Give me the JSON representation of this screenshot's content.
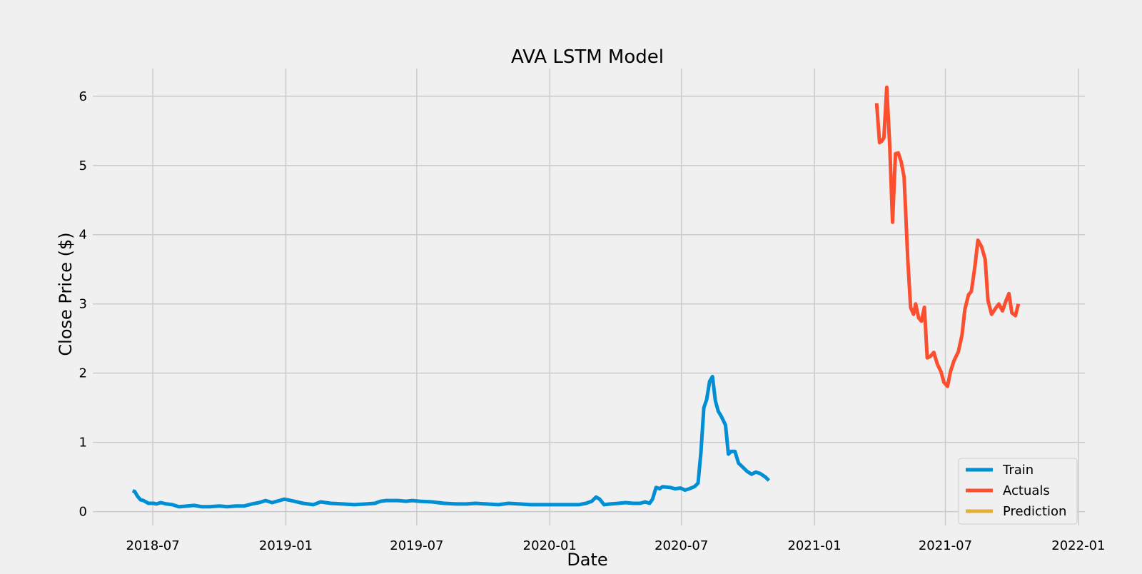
{
  "chart_data": {
    "type": "line",
    "title": "AVA LSTM Model",
    "xlabel": "Date",
    "ylabel": "Close Price ($)",
    "xlim": [
      "2018-04-09",
      "2022-01-10"
    ],
    "ylim": [
      -0.2,
      6.4
    ],
    "x_ticks": [
      "2018-07",
      "2019-01",
      "2019-07",
      "2020-01",
      "2020-07",
      "2021-01",
      "2021-07",
      "2022-01"
    ],
    "x_tick_dates": [
      "2018-07-01",
      "2019-01-01",
      "2019-07-01",
      "2020-01-01",
      "2020-07-01",
      "2021-01-01",
      "2021-07-01",
      "2022-01-01"
    ],
    "y_ticks": [
      0,
      1,
      2,
      3,
      4,
      5,
      6
    ],
    "grid": true,
    "legend_position": "bottom-right",
    "colors": {
      "background": "#f0f0f0",
      "grid": "#cbcbcb",
      "train": "#008fd5",
      "actuals": "#fc4f30",
      "prediction": "#e5ae38"
    },
    "series": [
      {
        "name": "Train",
        "color": "#008fd5",
        "points": [
          [
            "2018-06-03",
            0.3
          ],
          [
            "2018-06-06",
            0.29
          ],
          [
            "2018-06-10",
            0.22
          ],
          [
            "2018-06-14",
            0.17
          ],
          [
            "2018-06-18",
            0.16
          ],
          [
            "2018-06-25",
            0.12
          ],
          [
            "2018-07-02",
            0.12
          ],
          [
            "2018-07-06",
            0.11
          ],
          [
            "2018-07-12",
            0.13
          ],
          [
            "2018-07-20",
            0.11
          ],
          [
            "2018-07-28",
            0.1
          ],
          [
            "2018-08-06",
            0.07
          ],
          [
            "2018-08-18",
            0.08
          ],
          [
            "2018-08-27",
            0.09
          ],
          [
            "2018-09-07",
            0.07
          ],
          [
            "2018-09-18",
            0.07
          ],
          [
            "2018-10-01",
            0.08
          ],
          [
            "2018-10-12",
            0.07
          ],
          [
            "2018-10-24",
            0.08
          ],
          [
            "2018-11-04",
            0.08
          ],
          [
            "2018-11-15",
            0.11
          ],
          [
            "2018-11-25",
            0.13
          ],
          [
            "2018-12-04",
            0.16
          ],
          [
            "2018-12-13",
            0.13
          ],
          [
            "2018-12-30",
            0.18
          ],
          [
            "2019-01-08",
            0.16
          ],
          [
            "2019-01-25",
            0.12
          ],
          [
            "2019-02-08",
            0.1
          ],
          [
            "2019-02-18",
            0.14
          ],
          [
            "2019-03-04",
            0.12
          ],
          [
            "2019-03-20",
            0.11
          ],
          [
            "2019-04-06",
            0.1
          ],
          [
            "2019-04-22",
            0.11
          ],
          [
            "2019-05-04",
            0.12
          ],
          [
            "2019-05-12",
            0.15
          ],
          [
            "2019-05-20",
            0.16
          ],
          [
            "2019-06-05",
            0.16
          ],
          [
            "2019-06-16",
            0.15
          ],
          [
            "2019-06-25",
            0.16
          ],
          [
            "2019-07-05",
            0.15
          ],
          [
            "2019-07-22",
            0.14
          ],
          [
            "2019-08-08",
            0.12
          ],
          [
            "2019-08-25",
            0.11
          ],
          [
            "2019-09-08",
            0.11
          ],
          [
            "2019-09-20",
            0.12
          ],
          [
            "2019-10-05",
            0.11
          ],
          [
            "2019-10-22",
            0.1
          ],
          [
            "2019-11-05",
            0.12
          ],
          [
            "2019-11-20",
            0.11
          ],
          [
            "2019-12-05",
            0.1
          ],
          [
            "2019-12-25",
            0.1
          ],
          [
            "2020-01-10",
            0.1
          ],
          [
            "2020-01-25",
            0.1
          ],
          [
            "2020-02-10",
            0.1
          ],
          [
            "2020-02-20",
            0.12
          ],
          [
            "2020-02-28",
            0.15
          ],
          [
            "2020-03-05",
            0.21
          ],
          [
            "2020-03-10",
            0.18
          ],
          [
            "2020-03-16",
            0.1
          ],
          [
            "2020-03-25",
            0.11
          ],
          [
            "2020-04-05",
            0.12
          ],
          [
            "2020-04-15",
            0.13
          ],
          [
            "2020-04-25",
            0.12
          ],
          [
            "2020-05-05",
            0.12
          ],
          [
            "2020-05-12",
            0.14
          ],
          [
            "2020-05-18",
            0.12
          ],
          [
            "2020-05-22",
            0.18
          ],
          [
            "2020-05-27",
            0.35
          ],
          [
            "2020-06-01",
            0.33
          ],
          [
            "2020-06-05",
            0.36
          ],
          [
            "2020-06-15",
            0.35
          ],
          [
            "2020-06-22",
            0.33
          ],
          [
            "2020-06-30",
            0.34
          ],
          [
            "2020-07-06",
            0.31
          ],
          [
            "2020-07-12",
            0.33
          ],
          [
            "2020-07-19",
            0.36
          ],
          [
            "2020-07-24",
            0.41
          ],
          [
            "2020-07-28",
            0.85
          ],
          [
            "2020-08-01",
            1.5
          ],
          [
            "2020-08-05",
            1.62
          ],
          [
            "2020-08-09",
            1.88
          ],
          [
            "2020-08-13",
            1.95
          ],
          [
            "2020-08-17",
            1.6
          ],
          [
            "2020-08-21",
            1.45
          ],
          [
            "2020-08-25",
            1.38
          ],
          [
            "2020-08-31",
            1.25
          ],
          [
            "2020-09-04",
            0.83
          ],
          [
            "2020-09-08",
            0.87
          ],
          [
            "2020-09-13",
            0.87
          ],
          [
            "2020-09-18",
            0.7
          ],
          [
            "2020-09-24",
            0.64
          ],
          [
            "2020-09-30",
            0.58
          ],
          [
            "2020-10-06",
            0.54
          ],
          [
            "2020-10-12",
            0.57
          ],
          [
            "2020-10-18",
            0.55
          ],
          [
            "2020-10-25",
            0.5
          ],
          [
            "2020-10-30",
            0.45
          ]
        ]
      },
      {
        "name": "Actuals",
        "color": "#fc4f30",
        "points": [
          [
            "2021-03-28",
            5.9
          ],
          [
            "2021-04-01",
            5.33
          ],
          [
            "2021-04-04",
            5.35
          ],
          [
            "2021-04-07",
            5.4
          ],
          [
            "2021-04-11",
            6.13
          ],
          [
            "2021-04-15",
            5.3
          ],
          [
            "2021-04-19",
            4.18
          ],
          [
            "2021-04-23",
            5.17
          ],
          [
            "2021-04-27",
            5.18
          ],
          [
            "2021-05-01",
            5.05
          ],
          [
            "2021-05-05",
            4.83
          ],
          [
            "2021-05-10",
            3.65
          ],
          [
            "2021-05-14",
            2.95
          ],
          [
            "2021-05-18",
            2.85
          ],
          [
            "2021-05-21",
            3.0
          ],
          [
            "2021-05-25",
            2.8
          ],
          [
            "2021-05-29",
            2.75
          ],
          [
            "2021-06-02",
            2.95
          ],
          [
            "2021-06-06",
            2.22
          ],
          [
            "2021-06-10",
            2.24
          ],
          [
            "2021-06-15",
            2.3
          ],
          [
            "2021-06-20",
            2.13
          ],
          [
            "2021-06-25",
            2.02
          ],
          [
            "2021-06-29",
            1.87
          ],
          [
            "2021-07-04",
            1.81
          ],
          [
            "2021-07-08",
            2.02
          ],
          [
            "2021-07-13",
            2.18
          ],
          [
            "2021-07-19",
            2.31
          ],
          [
            "2021-07-24",
            2.55
          ],
          [
            "2021-07-28",
            2.92
          ],
          [
            "2021-08-02",
            3.13
          ],
          [
            "2021-08-06",
            3.18
          ],
          [
            "2021-08-11",
            3.55
          ],
          [
            "2021-08-15",
            3.92
          ],
          [
            "2021-08-20",
            3.83
          ],
          [
            "2021-08-25",
            3.65
          ],
          [
            "2021-08-29",
            3.05
          ],
          [
            "2021-09-03",
            2.85
          ],
          [
            "2021-09-08",
            2.93
          ],
          [
            "2021-09-13",
            3.0
          ],
          [
            "2021-09-18",
            2.9
          ],
          [
            "2021-09-23",
            3.05
          ],
          [
            "2021-09-27",
            3.15
          ],
          [
            "2021-10-01",
            2.87
          ],
          [
            "2021-10-06",
            2.83
          ],
          [
            "2021-10-10",
            3.0
          ]
        ]
      },
      {
        "name": "Prediction",
        "color": "#e5ae38",
        "points": []
      }
    ]
  }
}
